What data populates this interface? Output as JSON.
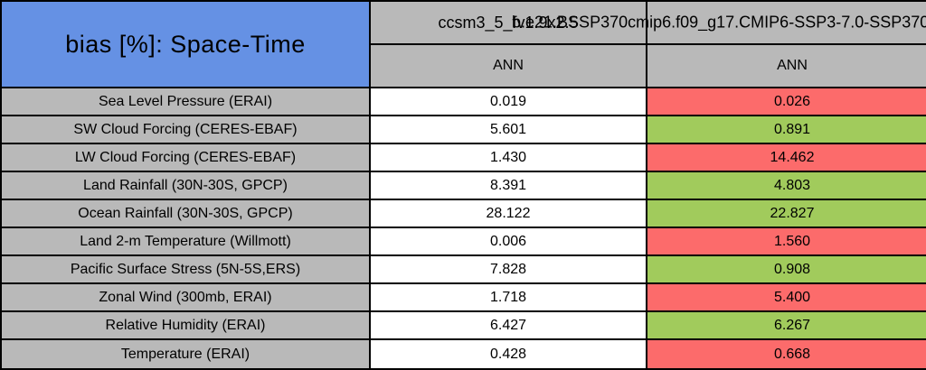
{
  "title": "bias [%]: Space-Time",
  "columns": [
    {
      "model": "ccsm3_5_fv1.9x2.5",
      "season": "ANN"
    },
    {
      "model": "b.e21.BSSP370cmip6.f09_g17.CMIP6-SSP3-7.0-SSP370",
      "season": "ANN"
    }
  ],
  "rows": [
    {
      "label": "Sea Level Pressure (ERAI)",
      "values": [
        {
          "text": "0.019",
          "status": "neutral"
        },
        {
          "text": "0.026",
          "status": "worse"
        }
      ]
    },
    {
      "label": "SW Cloud Forcing (CERES-EBAF)",
      "values": [
        {
          "text": "5.601",
          "status": "neutral"
        },
        {
          "text": "0.891",
          "status": "better"
        }
      ]
    },
    {
      "label": "LW Cloud Forcing (CERES-EBAF)",
      "values": [
        {
          "text": "1.430",
          "status": "neutral"
        },
        {
          "text": "14.462",
          "status": "worse"
        }
      ]
    },
    {
      "label": "Land Rainfall (30N-30S, GPCP)",
      "values": [
        {
          "text": "8.391",
          "status": "neutral"
        },
        {
          "text": "4.803",
          "status": "better"
        }
      ]
    },
    {
      "label": "Ocean Rainfall (30N-30S, GPCP)",
      "values": [
        {
          "text": "28.122",
          "status": "neutral"
        },
        {
          "text": "22.827",
          "status": "better"
        }
      ]
    },
    {
      "label": "Land 2-m Temperature (Willmott)",
      "values": [
        {
          "text": "0.006",
          "status": "neutral"
        },
        {
          "text": "1.560",
          "status": "worse"
        }
      ]
    },
    {
      "label": "Pacific Surface Stress (5N-5S,ERS)",
      "values": [
        {
          "text": "7.828",
          "status": "neutral"
        },
        {
          "text": "0.908",
          "status": "better"
        }
      ]
    },
    {
      "label": "Zonal Wind (300mb, ERAI)",
      "values": [
        {
          "text": "1.718",
          "status": "neutral"
        },
        {
          "text": "5.400",
          "status": "worse"
        }
      ]
    },
    {
      "label": "Relative Humidity (ERAI)",
      "values": [
        {
          "text": "6.427",
          "status": "neutral"
        },
        {
          "text": "6.267",
          "status": "better"
        }
      ]
    },
    {
      "label": "Temperature (ERAI)",
      "values": [
        {
          "text": "0.428",
          "status": "neutral"
        },
        {
          "text": "0.668",
          "status": "worse"
        }
      ]
    }
  ],
  "colors": {
    "header_blue": "#6591e4",
    "cell_gray": "#b9b9b9",
    "better_green": "#a1cb5c",
    "worse_red": "#fc6b6b",
    "neutral_white": "#ffffff",
    "border_black": "#000000"
  },
  "chart_data": {
    "type": "table",
    "title": "bias [%]: Space-Time",
    "column_headers": [
      "ccsm3_5_fv1.9x2.5 (ANN)",
      "b.e21.BSSP370cmip6.f09_g17.CMIP6-SSP3-7.0-SSP370 (ANN)"
    ],
    "row_labels": [
      "Sea Level Pressure (ERAI)",
      "SW Cloud Forcing (CERES-EBAF)",
      "LW Cloud Forcing (CERES-EBAF)",
      "Land Rainfall (30N-30S, GPCP)",
      "Ocean Rainfall (30N-30S, GPCP)",
      "Land 2-m Temperature (Willmott)",
      "Pacific Surface Stress (5N-5S,ERS)",
      "Zonal Wind (300mb, ERAI)",
      "Relative Humidity (ERAI)",
      "Temperature (ERAI)"
    ],
    "series": [
      {
        "name": "ccsm3_5_fv1.9x2.5",
        "values": [
          0.019,
          5.601,
          1.43,
          8.391,
          28.122,
          0.006,
          7.828,
          1.718,
          6.427,
          0.428
        ]
      },
      {
        "name": "b.e21.BSSP370cmip6.f09_g17.CMIP6-SSP3-7.0-SSP370",
        "values": [
          0.026,
          0.891,
          14.462,
          4.803,
          22.827,
          1.56,
          0.908,
          5.4,
          6.267,
          0.668
        ]
      }
    ],
    "cell_highlight_second_series": [
      "worse",
      "better",
      "worse",
      "better",
      "better",
      "worse",
      "better",
      "worse",
      "better",
      "worse"
    ],
    "legend_position": "none",
    "grid": true
  }
}
